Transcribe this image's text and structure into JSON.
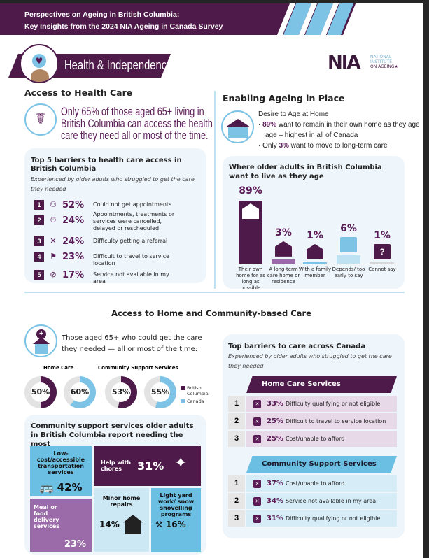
{
  "header": {
    "line1": "Perspectives on Ageing in British Columbia:",
    "line2": "Key Insights from the 2024 NIA Ageing in Canada Survey"
  },
  "section_banner": "Health & Independence",
  "logo": {
    "mark": "NIA",
    "line1": "NATIONAL",
    "line2": "INSTITUTE",
    "line3": "ON AGEING"
  },
  "health_care": {
    "title": "Access to Health Care",
    "headline": [
      "Only 65% of those aged 65+ living in",
      "British Columbia can access the health",
      "care they need all or most of the time."
    ],
    "barriers_title": "Top 5 barriers to health care access in British Columbia",
    "barriers_sub": "Experienced by older adults who struggled to get the care they needed",
    "barriers": [
      {
        "rank": "1",
        "pct": "52%",
        "text": "Could not get appointments",
        "icon": "people-icon"
      },
      {
        "rank": "2",
        "pct": "24%",
        "text": "Appointments, treatments or services were cancelled, delayed or rescheduled",
        "icon": "stopwatch-icon"
      },
      {
        "rank": "3",
        "pct": "24%",
        "text": "Difficulty getting a referral",
        "icon": "clipboard-x-icon"
      },
      {
        "rank": "4",
        "pct": "23%",
        "text": "Difficult to travel to service location",
        "icon": "route-icon"
      },
      {
        "rank": "5",
        "pct": "17%",
        "text": "Service not available in my area",
        "icon": "location-blocked-icon"
      }
    ]
  },
  "ageing_place": {
    "title": "Enabling Ageing in Place",
    "desire": "Desire to Age at Home",
    "b1_pct": "89%",
    "b1_text": " want to remain in their own home as they age age – highest in all of Canada",
    "b2_pre": "Only ",
    "b2_pct": "3%",
    "b2_text": " want to move to long-term care",
    "chart_title": "Where older adults in British Columbia want to live as they age"
  },
  "chart_data": {
    "type": "bar",
    "title": "Where older adults in British Columbia want to live as they age",
    "categories": [
      "Their own home for as long as possible",
      "A long-term care home or residence",
      "With a family member",
      "Depends/ too early to say",
      "Cannot say"
    ],
    "values": [
      89,
      3,
      1,
      6,
      1
    ],
    "labels": [
      "89%",
      "3%",
      "1%",
      "6%",
      "1%"
    ],
    "colors": [
      "#4e1a4a",
      "#9b6aa8",
      "#7cc3e6",
      "#bfe2f3",
      "#d8d8d8"
    ]
  },
  "community": {
    "title": "Access to Home and Community-based Care",
    "lead": [
      "Those aged 65+ who could get the care",
      "they needed — all or most of the time:"
    ],
    "home_care_label": "Home Care",
    "css_label": "Community Support Services",
    "donuts": [
      {
        "label": "50%",
        "value": 50,
        "color": "#4e1a4a"
      },
      {
        "label": "60%",
        "value": 60,
        "color": "#7cc3e6"
      },
      {
        "label": "53%",
        "value": 53,
        "color": "#4e1a4a"
      },
      {
        "label": "55%",
        "value": 55,
        "color": "#7cc3e6"
      }
    ],
    "legend": {
      "bc": "British Columbia",
      "canada": "Canada",
      "bc_color": "#4e1a4a",
      "canada_color": "#7cc3e6"
    },
    "needs_title": "Community support services older adults in British Columbia report needing the most",
    "needs": {
      "transport": {
        "label": "Low-cost/accessible transportation services",
        "pct": "42%"
      },
      "chores": {
        "label": "Help with chores",
        "pct": "31%"
      },
      "meal": {
        "label": "Meal or food delivery services",
        "pct": "23%"
      },
      "repairs": {
        "label": "Minor home repairs",
        "pct": "14%"
      },
      "yard": {
        "label": "Light yard work/ snow shovelling programs",
        "pct": "16%"
      }
    }
  },
  "canada_barriers": {
    "title": "Top barriers to care across Canada",
    "sub": "Experienced by older adults who struggled to get the care they needed",
    "home_care": {
      "label": "Home Care Services",
      "rows": [
        {
          "rank": "1",
          "pct": "33%",
          "text": "Difficulty qualifying or not eligible"
        },
        {
          "rank": "2",
          "pct": "25%",
          "text": "Difficult to travel to service location"
        },
        {
          "rank": "3",
          "pct": "25%",
          "text": "Cost/unable to afford"
        }
      ]
    },
    "css": {
      "label": "Community Support Services",
      "rows": [
        {
          "rank": "1",
          "pct": "37%",
          "text": "Cost/unable to afford"
        },
        {
          "rank": "2",
          "pct": "34%",
          "text": "Service not available in my area"
        },
        {
          "rank": "3",
          "pct": "31%",
          "text": "Difficulty qualifying or not eligible"
        }
      ]
    }
  }
}
